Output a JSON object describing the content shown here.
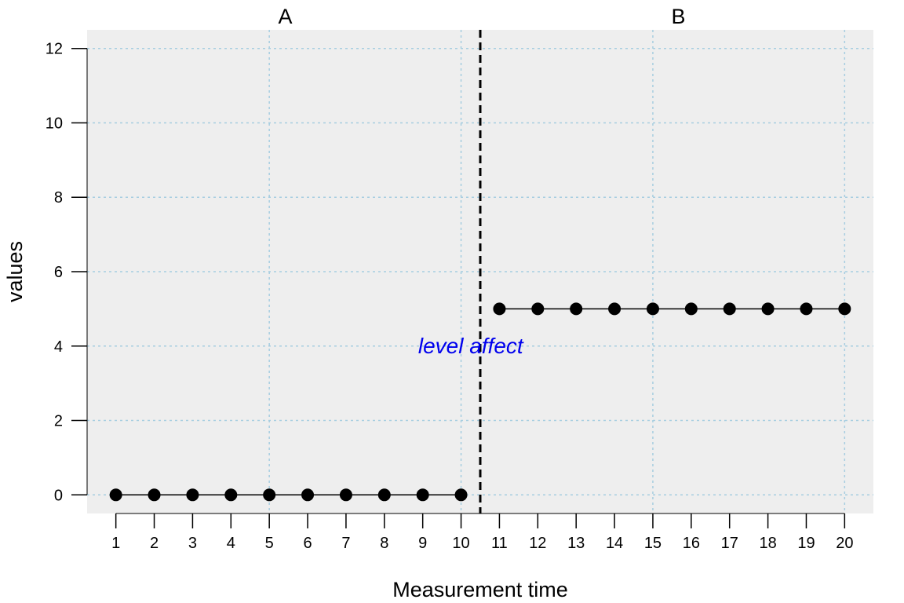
{
  "chart_data": {
    "type": "line",
    "xlabel": "Measurement time",
    "ylabel": "values",
    "xlim": [
      0.25,
      20.75
    ],
    "ylim": [
      -0.5,
      12.5
    ],
    "x_ticks": [
      1,
      2,
      3,
      4,
      5,
      6,
      7,
      8,
      9,
      10,
      11,
      12,
      13,
      14,
      15,
      16,
      17,
      18,
      19,
      20
    ],
    "y_ticks": [
      0,
      2,
      4,
      6,
      8,
      10,
      12
    ],
    "grid": true,
    "grid_x": [
      5,
      10,
      15,
      20
    ],
    "grid_y": [
      0,
      2,
      4,
      6,
      8,
      10,
      12
    ],
    "phase_boundary": 10.5,
    "phases": [
      {
        "name": "A",
        "x": [
          1,
          2,
          3,
          4,
          5,
          6,
          7,
          8,
          9,
          10
        ],
        "values": [
          0,
          0,
          0,
          0,
          0,
          0,
          0,
          0,
          0,
          0
        ]
      },
      {
        "name": "B",
        "x": [
          11,
          12,
          13,
          14,
          15,
          16,
          17,
          18,
          19,
          20
        ],
        "values": [
          5,
          5,
          5,
          5,
          5,
          5,
          5,
          5,
          5,
          5
        ]
      }
    ],
    "annotation": {
      "text": "level affect",
      "x": 10.25,
      "y": 3.8,
      "color": "#0000ee"
    },
    "colors": {
      "panel": "#eeeeee",
      "grid": "#a6cde0",
      "series": "#000000"
    }
  }
}
